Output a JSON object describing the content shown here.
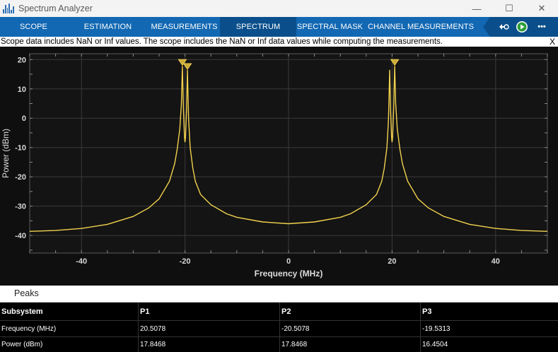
{
  "window": {
    "title": "Spectrum Analyzer",
    "minimize": "—",
    "maximize": "☐",
    "close": "✕"
  },
  "tabs": [
    {
      "label": "SCOPE"
    },
    {
      "label": "ESTIMATION"
    },
    {
      "label": "MEASUREMENTS"
    },
    {
      "label": "SPECTRUM"
    },
    {
      "label": "SPECTRAL MASK"
    },
    {
      "label": "CHANNEL MEASUREMENTS"
    }
  ],
  "active_tab": "SPECTRUM",
  "toolbar": {
    "more": "•••"
  },
  "infobar": {
    "message": "Scope data includes NaN or Inf values. The scope includes the NaN or Inf data values while computing the measurements.",
    "close": "X"
  },
  "chart_data": {
    "type": "line",
    "xlabel": "Frequency (MHz)",
    "ylabel": "Power (dBm)",
    "xlim": [
      -50,
      50
    ],
    "ylim": [
      -46,
      22
    ],
    "xticks": [
      -40,
      -20,
      0,
      20,
      40
    ],
    "yticks": [
      20,
      10,
      0,
      -10,
      -20,
      -30,
      -40
    ],
    "grid": true,
    "line_color": "#f2d24e",
    "series": [
      {
        "x": [
          -50,
          -45,
          -40,
          -35,
          -30,
          -27,
          -25,
          -23,
          -22,
          -21.5,
          -21,
          -20.7,
          -20.5,
          -20.3,
          -20.1,
          -20.0,
          -19.9,
          -19.7,
          -19.53,
          -19.3,
          -19.0,
          -18.5,
          -18,
          -17,
          -15,
          -12,
          -10,
          -5,
          0,
          5,
          10,
          12,
          15,
          17,
          18,
          18.5,
          19.0,
          19.3,
          19.53,
          19.7,
          19.9,
          20.0,
          20.1,
          20.3,
          20.5,
          20.7,
          21,
          21.5,
          22,
          23,
          25,
          27,
          30,
          35,
          40,
          45,
          50
        ],
        "y": [
          -38.6,
          -38.3,
          -37.6,
          -36.2,
          -33.5,
          -30.6,
          -27.5,
          -21.5,
          -15.5,
          -10.5,
          -3.5,
          5.0,
          17.8,
          3.0,
          -6.5,
          -8.2,
          -6.5,
          3.0,
          16.5,
          -0.5,
          -10.0,
          -17.0,
          -21.5,
          -26.0,
          -29.5,
          -32.6,
          -33.8,
          -35.4,
          -36.0,
          -35.4,
          -33.8,
          -32.6,
          -29.5,
          -26.0,
          -21.5,
          -17.0,
          -10.0,
          -0.5,
          16.5,
          3.0,
          -6.5,
          -8.2,
          -6.5,
          3.0,
          17.8,
          5.0,
          -3.5,
          -10.5,
          -15.5,
          -21.5,
          -27.5,
          -30.6,
          -33.5,
          -36.2,
          -37.6,
          -38.3,
          -38.6
        ]
      }
    ],
    "markers": [
      {
        "label": "P2",
        "x": -20.5078,
        "y": 17.8468
      },
      {
        "label": "P3",
        "x": -19.5313,
        "y": 16.4504
      },
      {
        "label": "P1",
        "x": 20.5078,
        "y": 17.8468
      }
    ]
  },
  "peaks": {
    "title": "Peaks",
    "columns": [
      "Subsystem",
      "P1",
      "P2",
      "P3"
    ],
    "rows": [
      [
        "Frequency (MHz)",
        "20.5078",
        "-20.5078",
        "-19.5313"
      ],
      [
        "Power (dBm)",
        "17.8468",
        "17.8468",
        "16.4504"
      ]
    ]
  }
}
